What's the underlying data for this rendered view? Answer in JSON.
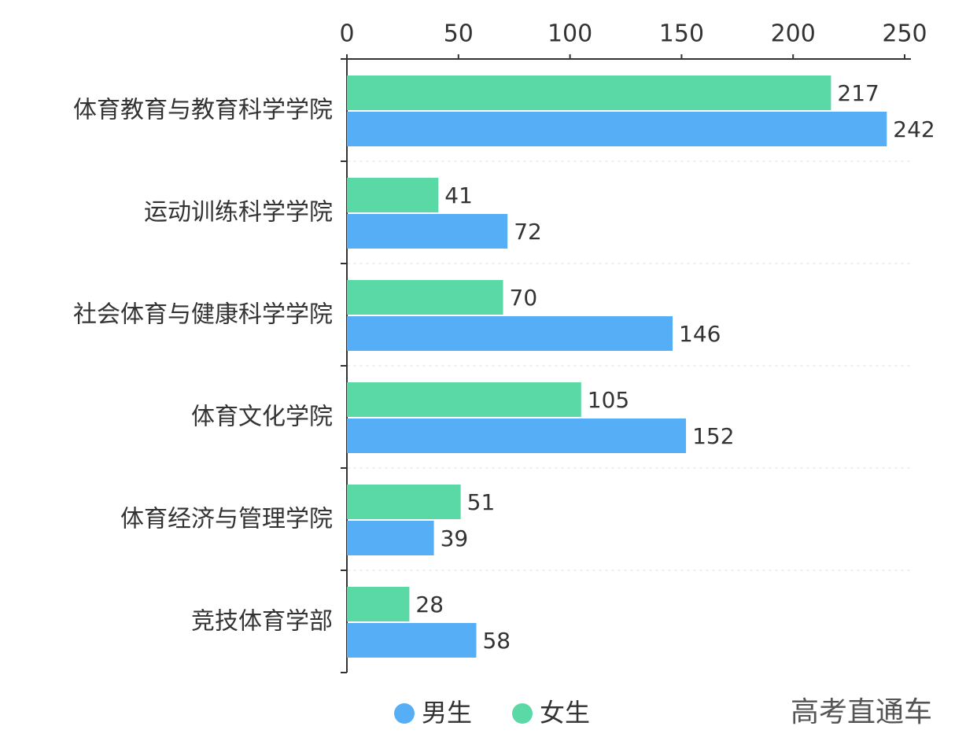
{
  "chart_data": {
    "type": "bar",
    "orientation": "horizontal",
    "categories": [
      "体育教育与教育科学学院",
      "运动训练科学学院",
      "社会体育与健康科学学院",
      "体育文化学院",
      "体育经济与管理学院",
      "竞技体育学部"
    ],
    "series": [
      {
        "name": "男生",
        "color": "#56aef6",
        "values": [
          242,
          72,
          146,
          152,
          39,
          58
        ]
      },
      {
        "name": "女生",
        "color": "#5ad8a6",
        "values": [
          217,
          41,
          70,
          105,
          51,
          28
        ]
      }
    ],
    "xlim": [
      0,
      250
    ],
    "xticks": [
      0,
      50,
      100,
      150,
      200,
      250
    ],
    "grid": true,
    "legend": "bottom",
    "watermark": "高考直通车"
  }
}
